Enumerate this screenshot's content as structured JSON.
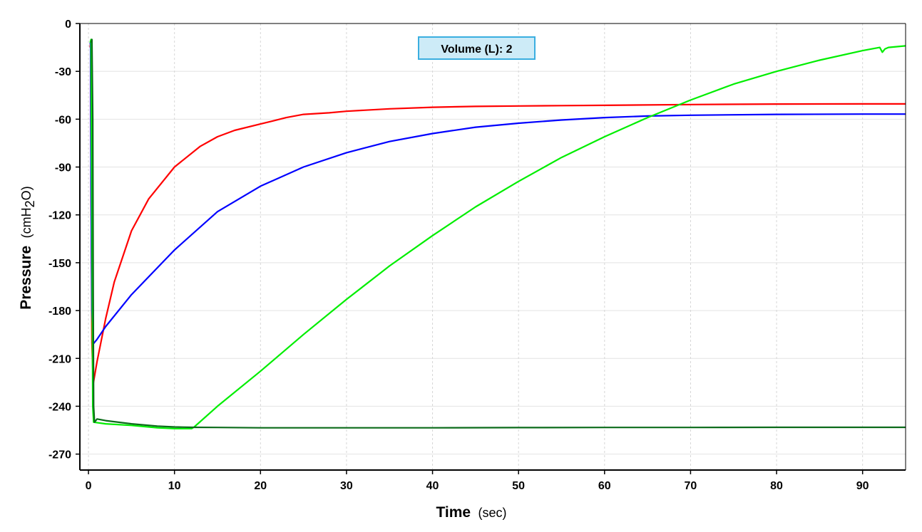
{
  "chart_data": {
    "type": "line",
    "annotation": "Volume (L): 2",
    "xlabel": "Time",
    "xlabel_unit": "(sec)",
    "ylabel": "Pressure",
    "ylabel_unit_prefix": "(cmH",
    "ylabel_unit_sub": "2",
    "ylabel_unit_suffix": "O)",
    "xlim": [
      -1,
      95
    ],
    "ylim": [
      -280,
      0
    ],
    "xticks": [
      0,
      10,
      20,
      30,
      40,
      50,
      60,
      70,
      80,
      90
    ],
    "yticks": [
      0,
      -30,
      -60,
      -90,
      -120,
      -150,
      -180,
      -210,
      -240,
      -270
    ],
    "grid": true,
    "series": [
      {
        "color": "#ff0000",
        "x": [
          0.2,
          0.25,
          0.3,
          0.4,
          0.55,
          1,
          2,
          3,
          5,
          7,
          10,
          13,
          15,
          17,
          20,
          23,
          25,
          28,
          30,
          35,
          40,
          45,
          50,
          55,
          60,
          70,
          80,
          90,
          95
        ],
        "y": [
          -15,
          -12,
          -100,
          -200,
          -226,
          -212,
          -185,
          -162,
          -130,
          -110,
          -90,
          -77,
          -71,
          -67,
          -63,
          -59,
          -57,
          -56,
          -55,
          -53.5,
          -52.5,
          -52,
          -51.7,
          -51.5,
          -51.3,
          -50.8,
          -50.5,
          -50.4,
          -50.4
        ]
      },
      {
        "color": "#0000ff",
        "x": [
          0.2,
          0.25,
          0.3,
          0.4,
          0.55,
          1,
          2,
          5,
          10,
          15,
          20,
          25,
          30,
          35,
          40,
          45,
          50,
          55,
          60,
          65,
          70,
          80,
          90,
          95
        ],
        "y": [
          -13,
          -12,
          -100,
          -180,
          -201,
          -198,
          -190,
          -170,
          -142,
          -118,
          -102,
          -90,
          -81,
          -74,
          -69,
          -65,
          -62.5,
          -60.5,
          -59,
          -58,
          -57.5,
          -57,
          -56.8,
          -56.8
        ]
      },
      {
        "color": "#00ee00",
        "x": [
          0.2,
          0.3,
          0.4,
          0.5,
          0.6,
          2,
          5,
          8,
          10,
          12,
          12.3,
          15,
          20,
          25,
          30,
          35,
          40,
          45,
          50,
          55,
          60,
          65,
          70,
          75,
          80,
          85,
          90,
          92,
          92.3,
          92.6,
          93,
          95
        ],
        "y": [
          -12,
          -10,
          -120,
          -240,
          -250,
          -251,
          -252,
          -253.5,
          -254,
          -254,
          -253,
          -240,
          -218,
          -195,
          -173,
          -152,
          -133,
          -115,
          -99,
          -84,
          -71,
          -59,
          -48,
          -38,
          -30,
          -23,
          -17,
          -15,
          -18,
          -16,
          -15,
          -14
        ]
      },
      {
        "color": "#0b6b1a",
        "x": [
          0.3,
          0.4,
          0.5,
          0.55,
          0.6,
          0.7,
          1,
          2,
          5,
          8,
          10,
          12,
          15,
          20,
          30,
          40,
          50,
          60,
          70,
          80,
          90,
          95
        ],
        "y": [
          -12,
          -10,
          -60,
          -170,
          -240,
          -250,
          -248,
          -249,
          -251,
          -252.5,
          -253,
          -253.2,
          -253.3,
          -253.5,
          -253.5,
          -253.5,
          -253.4,
          -253.3,
          -253.3,
          -253.2,
          -253.2,
          -253.2
        ]
      }
    ]
  }
}
